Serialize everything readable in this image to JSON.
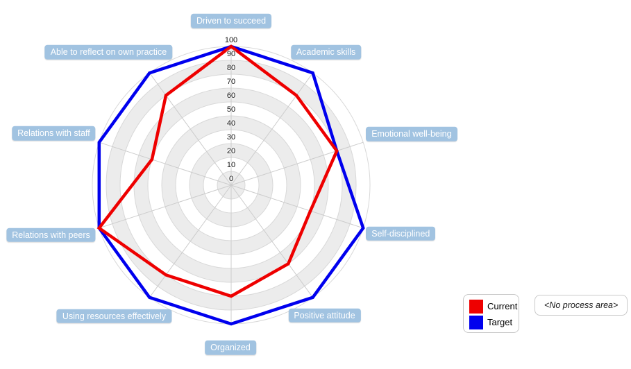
{
  "chart_data": {
    "type": "radar",
    "title": "",
    "categories": [
      "Driven to succeed",
      "Academic skills",
      "Emotional well-being",
      "Self-disciplined",
      "Positive attitude",
      "Organized",
      "Using resources effectively",
      "Relations with peers",
      "Relations with staff",
      "Able to reflect on own practice"
    ],
    "series": [
      {
        "name": "Current",
        "color": "#ee0000",
        "values": [
          100,
          80,
          80,
          60,
          70,
          80,
          80,
          100,
          60,
          80
        ]
      },
      {
        "name": "Target",
        "color": "#0000ee",
        "values": [
          100,
          100,
          80,
          100,
          100,
          100,
          100,
          100,
          100,
          100
        ]
      }
    ],
    "radial_axis": {
      "min": 0,
      "max": 100,
      "tick_interval": 10,
      "tick_labels": [
        "0",
        "10",
        "20",
        "30",
        "40",
        "50",
        "60",
        "70",
        "80",
        "90",
        "100"
      ]
    },
    "start_angle_deg": 90,
    "direction": "clockwise",
    "grid": {
      "band_color_odd": "#ececec",
      "band_color_even": "#ffffff",
      "ring_line_color": "#d8d8d8",
      "spoke_line_color": "#cccccc"
    },
    "legend_position": "bottom-right"
  },
  "axis_label_style": {
    "background": "#a1c3e1",
    "text_color": "#ffffff"
  },
  "legend": {
    "items": [
      {
        "label": "Current",
        "color": "#ee0000"
      },
      {
        "label": "Target",
        "color": "#0000ee"
      }
    ]
  },
  "process_area_label": "<No process area>"
}
